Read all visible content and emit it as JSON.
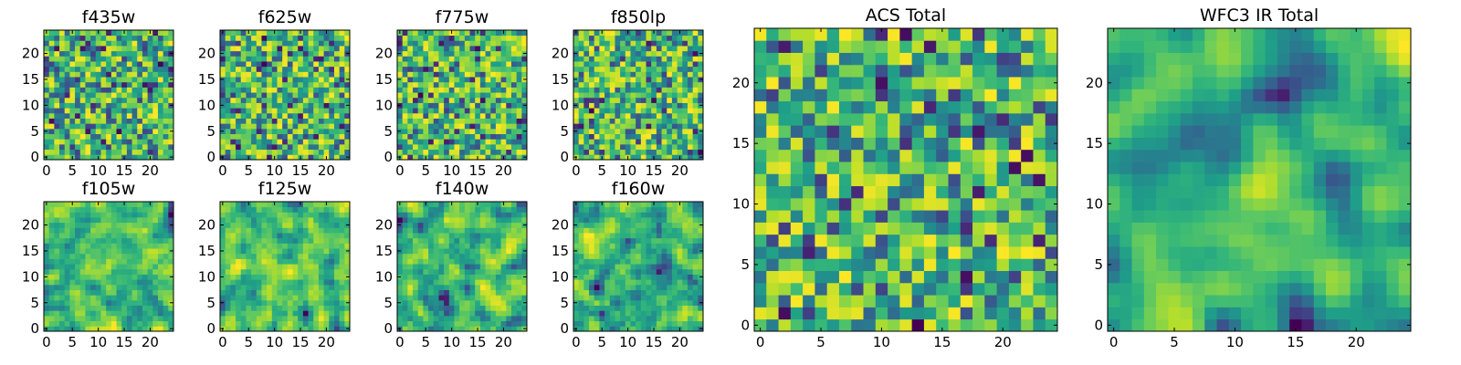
{
  "chart_data": [
    {
      "type": "heatmap",
      "title": "f435w",
      "xticks": [
        0,
        5,
        10,
        15,
        20
      ],
      "yticks": [
        0,
        5,
        10,
        15,
        20
      ],
      "xlim": [
        -0.5,
        24.5
      ],
      "ylim": [
        -0.5,
        24.5
      ],
      "grid_size": 25,
      "colormap": "viridis",
      "seed": 11,
      "smooth": 0
    },
    {
      "type": "heatmap",
      "title": "f625w",
      "xticks": [
        0,
        5,
        10,
        15,
        20
      ],
      "yticks": [
        0,
        5,
        10,
        15,
        20
      ],
      "xlim": [
        -0.5,
        24.5
      ],
      "ylim": [
        -0.5,
        24.5
      ],
      "grid_size": 25,
      "colormap": "viridis",
      "seed": 23,
      "smooth": 0
    },
    {
      "type": "heatmap",
      "title": "f775w",
      "xticks": [
        0,
        5,
        10,
        15,
        20
      ],
      "yticks": [
        0,
        5,
        10,
        15,
        20
      ],
      "xlim": [
        -0.5,
        24.5
      ],
      "ylim": [
        -0.5,
        24.5
      ],
      "grid_size": 25,
      "colormap": "viridis",
      "seed": 37,
      "smooth": 0
    },
    {
      "type": "heatmap",
      "title": "f850lp",
      "xticks": [
        0,
        5,
        10,
        15,
        20
      ],
      "yticks": [
        0,
        5,
        10,
        15,
        20
      ],
      "xlim": [
        -0.5,
        24.5
      ],
      "ylim": [
        -0.5,
        24.5
      ],
      "grid_size": 25,
      "colormap": "viridis",
      "seed": 41,
      "smooth": 0
    },
    {
      "type": "heatmap",
      "title": "f105w",
      "xticks": [
        0,
        5,
        10,
        15,
        20
      ],
      "yticks": [
        0,
        5,
        10,
        15,
        20
      ],
      "xlim": [
        -0.5,
        24.5
      ],
      "ylim": [
        -0.5,
        24.5
      ],
      "grid_size": 25,
      "colormap": "viridis",
      "seed": 53,
      "smooth": 1
    },
    {
      "type": "heatmap",
      "title": "f125w",
      "xticks": [
        0,
        5,
        10,
        15,
        20
      ],
      "yticks": [
        0,
        5,
        10,
        15,
        20
      ],
      "xlim": [
        -0.5,
        24.5
      ],
      "ylim": [
        -0.5,
        24.5
      ],
      "grid_size": 25,
      "colormap": "viridis",
      "seed": 67,
      "smooth": 1
    },
    {
      "type": "heatmap",
      "title": "f140w",
      "xticks": [
        0,
        5,
        10,
        15,
        20
      ],
      "yticks": [
        0,
        5,
        10,
        15,
        20
      ],
      "xlim": [
        -0.5,
        24.5
      ],
      "ylim": [
        -0.5,
        24.5
      ],
      "grid_size": 25,
      "colormap": "viridis",
      "seed": 79,
      "smooth": 1
    },
    {
      "type": "heatmap",
      "title": "f160w",
      "xticks": [
        0,
        5,
        10,
        15,
        20
      ],
      "yticks": [
        0,
        5,
        10,
        15,
        20
      ],
      "xlim": [
        -0.5,
        24.5
      ],
      "ylim": [
        -0.5,
        24.5
      ],
      "grid_size": 25,
      "colormap": "viridis",
      "seed": 83,
      "smooth": 1
    },
    {
      "type": "heatmap",
      "title": "ACS Total",
      "xticks": [
        0,
        5,
        10,
        15,
        20
      ],
      "yticks": [
        0,
        5,
        10,
        15,
        20
      ],
      "xlim": [
        -0.5,
        24.5
      ],
      "ylim": [
        -0.5,
        24.5
      ],
      "grid_size": 25,
      "colormap": "viridis",
      "seed": 97,
      "smooth": 0
    },
    {
      "type": "heatmap",
      "title": "WFC3 IR Total",
      "xticks": [
        0,
        5,
        10,
        15,
        20
      ],
      "yticks": [
        0,
        5,
        10,
        15,
        20
      ],
      "xlim": [
        -0.5,
        24.5
      ],
      "ylim": [
        -0.5,
        24.5
      ],
      "grid_size": 25,
      "colormap": "viridis",
      "seed": 101,
      "smooth": 2
    }
  ]
}
